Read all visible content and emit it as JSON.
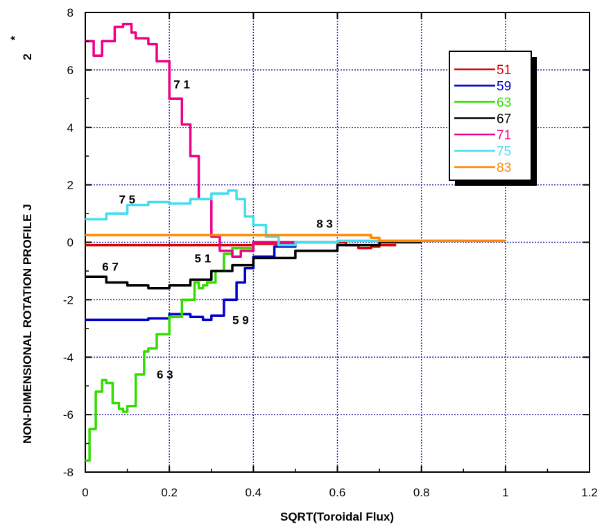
{
  "chart_data": {
    "type": "line",
    "title": "",
    "xlabel": "SQRT(Toroidal  Flux)",
    "ylabel": "NON-DIMENSIONAL  ROTATION  PROFILE  J",
    "ylabel_symbol": "J",
    "ylabel_superscript": "*",
    "ylabel_subscript": "2",
    "xlim": [
      0,
      1.2
    ],
    "ylim": [
      -8,
      8
    ],
    "xticks": [
      "0",
      "0.2",
      "0.4",
      "0.6",
      "0.8",
      "1",
      "1.2"
    ],
    "yticks": [
      "8",
      "6",
      "4",
      "2",
      "0",
      "-2",
      "-4",
      "-6",
      "-8"
    ],
    "grid": true,
    "legend_position": "top-right",
    "series": [
      {
        "name": "51",
        "color": "#dd0000",
        "x": [
          0,
          0.1,
          0.2,
          0.3,
          0.4,
          0.5,
          0.6,
          0.62,
          0.65,
          0.68,
          0.7,
          0.74
        ],
        "y": [
          -0.1,
          -0.1,
          -0.1,
          -0.1,
          -0.05,
          0.0,
          0.0,
          -0.1,
          -0.2,
          -0.15,
          -0.1,
          -0.1
        ]
      },
      {
        "name": "59",
        "color": "#0000cc",
        "x": [
          0,
          0.1,
          0.15,
          0.2,
          0.25,
          0.28,
          0.3,
          0.33,
          0.36,
          0.38,
          0.4,
          0.45,
          0.5
        ],
        "y": [
          -2.7,
          -2.7,
          -2.65,
          -2.5,
          -2.6,
          -2.7,
          -2.55,
          -2.0,
          -1.4,
          -0.9,
          -0.5,
          -0.15,
          0.0
        ]
      },
      {
        "name": "63",
        "color": "#33dd00",
        "x": [
          0.0,
          0.01,
          0.025,
          0.04,
          0.05,
          0.065,
          0.08,
          0.09,
          0.1,
          0.12,
          0.14,
          0.15,
          0.17,
          0.2,
          0.23,
          0.26,
          0.27,
          0.28,
          0.29,
          0.31,
          0.33,
          0.35,
          0.4,
          0.5
        ],
        "y": [
          -7.6,
          -6.5,
          -5.2,
          -4.8,
          -4.9,
          -5.6,
          -5.8,
          -5.9,
          -5.7,
          -4.6,
          -3.8,
          -3.7,
          -3.2,
          -2.6,
          -2.0,
          -1.4,
          -1.6,
          -1.5,
          -1.4,
          -1.0,
          -0.4,
          -0.2,
          0.0,
          0.0
        ]
      },
      {
        "name": "67",
        "color": "#000000",
        "x": [
          0,
          0.05,
          0.1,
          0.15,
          0.2,
          0.25,
          0.3,
          0.35,
          0.4,
          0.5,
          0.6,
          0.7,
          0.8
        ],
        "y": [
          -1.2,
          -1.4,
          -1.5,
          -1.6,
          -1.5,
          -1.3,
          -1.0,
          -0.8,
          -0.55,
          -0.3,
          -0.1,
          0.0,
          0.0
        ]
      },
      {
        "name": "71",
        "color": "#ee0088",
        "x": [
          0.0,
          0.02,
          0.04,
          0.07,
          0.09,
          0.11,
          0.12,
          0.15,
          0.17,
          0.2,
          0.23,
          0.25,
          0.27,
          0.3,
          0.32,
          0.35,
          0.37,
          0.4,
          0.45,
          0.5
        ],
        "y": [
          7.0,
          6.5,
          7.0,
          7.5,
          7.6,
          7.3,
          7.1,
          6.9,
          6.3,
          5.0,
          4.1,
          3.0,
          1.5,
          0.2,
          -0.3,
          -0.5,
          -0.3,
          0.0,
          0.0,
          0.0
        ]
      },
      {
        "name": "75",
        "color": "#44ddee",
        "x": [
          0.0,
          0.05,
          0.1,
          0.15,
          0.2,
          0.25,
          0.3,
          0.34,
          0.36,
          0.38,
          0.4,
          0.43,
          0.46,
          0.5,
          0.6,
          0.7,
          0.8,
          0.9
        ],
        "y": [
          0.8,
          1.0,
          1.3,
          1.4,
          1.35,
          1.5,
          1.7,
          1.8,
          1.5,
          0.9,
          0.6,
          0.2,
          -0.1,
          0.0,
          0.05,
          0.05,
          0.05,
          0.05
        ]
      },
      {
        "name": "83",
        "color": "#ff8800",
        "x": [
          0.0,
          0.2,
          0.4,
          0.6,
          0.66,
          0.68,
          0.7,
          0.8,
          0.9,
          1.0
        ],
        "y": [
          0.25,
          0.25,
          0.25,
          0.25,
          0.25,
          0.15,
          0.05,
          0.05,
          0.05,
          0.05
        ]
      }
    ],
    "annotations": [
      {
        "text": "7 1",
        "x": 0.21,
        "y": 5.5
      },
      {
        "text": "7 5",
        "x": 0.08,
        "y": 1.5
      },
      {
        "text": "8 3",
        "x": 0.55,
        "y": 0.65
      },
      {
        "text": "5 1",
        "x": 0.26,
        "y": -0.55
      },
      {
        "text": "6 7",
        "x": 0.04,
        "y": -0.85
      },
      {
        "text": "5 9",
        "x": 0.35,
        "y": -2.7
      },
      {
        "text": "6 3",
        "x": 0.17,
        "y": -4.6
      }
    ]
  }
}
